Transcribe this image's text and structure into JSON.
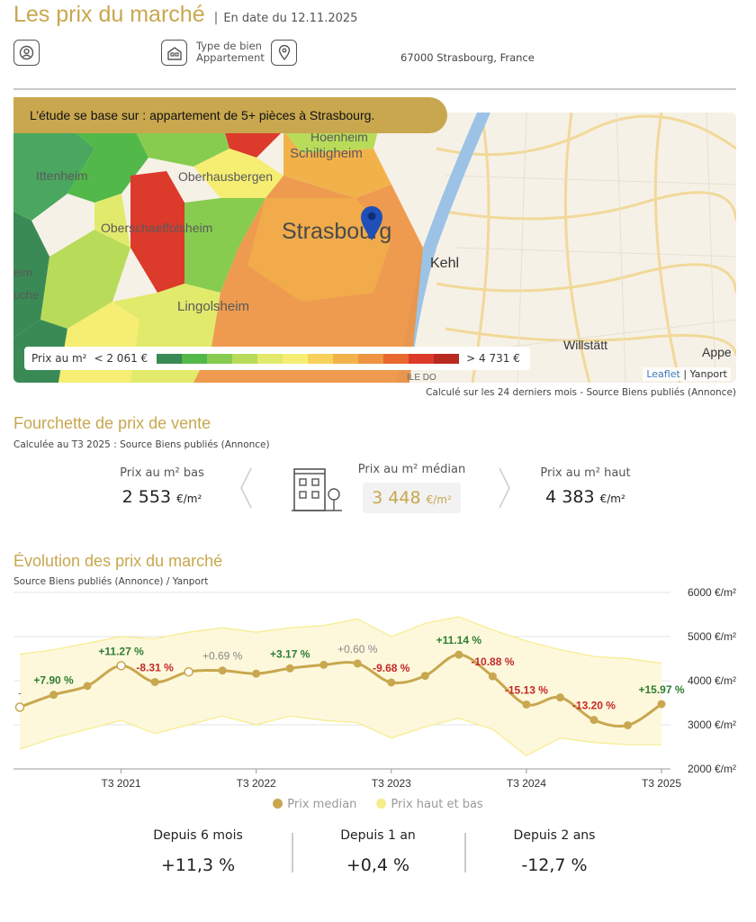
{
  "header": {
    "title": "Les prix du marché",
    "separator": "|",
    "date": "En date du 12.11.2025"
  },
  "property": {
    "type_label": "Type de bien",
    "type_value": "Appartement",
    "address": "67000 Strasbourg, France",
    "icons": [
      "user-icon",
      "building-icon",
      "location-pin-icon"
    ]
  },
  "map": {
    "banner": "L’étude se base sur :  appartement de 5+ pièces à Strasbourg.",
    "labels": {
      "hoenheim": "Hoenheim",
      "ittenheim": "Ittenheim",
      "oberhausbergen": "Oberhausbergen",
      "schiltigheim": "Schiltigheim",
      "oberschaeffolsheim": "Oberschaeffolsheim",
      "strasbourg": "Strasbourg",
      "kehl": "Kehl",
      "lingolsheim": "Lingolsheim",
      "willstatt": "Willstätt",
      "appe": "Appe",
      "eim": "eim",
      "uche": "uche",
      "ile": "ILE DO"
    },
    "legend": {
      "label": "Prix au m²",
      "min": "< 2 061 €",
      "max": "> 4 731 €",
      "colors": [
        "#3a8a55",
        "#52b84a",
        "#87cc4f",
        "#b8db5a",
        "#e2ea6c",
        "#f5ee73",
        "#f6d25a",
        "#f2b24a",
        "#ee9442",
        "#e8682f",
        "#dc3a2b",
        "#b82a20"
      ]
    },
    "attribution_link": "Leaflet",
    "attribution_sep": "|",
    "attribution_text": "Yanport",
    "source": "Calculé sur les 24 derniers mois - Source Biens publiés (Annonce)"
  },
  "range": {
    "title": "Fourchette de prix de vente",
    "subtitle": "Calculée au T3 2025 : Source Biens publiés (Annonce)",
    "low_label": "Prix au m² bas",
    "low_value": "2 553",
    "median_label": "Prix au m² médian",
    "median_value": "3 448",
    "high_label": "Prix au m² haut",
    "high_value": "4 383",
    "unit": "€/m²"
  },
  "evolution": {
    "title": "Évolution des prix du marché",
    "subtitle": "Source Biens publiés (Annonce) / Yanport",
    "legend_median": "Prix median",
    "legend_range": "Prix haut et bas",
    "summary": [
      {
        "label": "Depuis 6 mois",
        "value": "+11,3 %"
      },
      {
        "label": "Depuis 1 an",
        "value": "+0,4 %"
      },
      {
        "label": "Depuis 2 ans",
        "value": "-12,7 %"
      }
    ]
  },
  "chart_data": {
    "type": "line",
    "ylim": [
      2000,
      6000
    ],
    "y_ticks": [
      "2000 €/m²",
      "3000 €/m²",
      "4000 €/m²",
      "5000 €/m²",
      "6000 €/m²"
    ],
    "x_ticks": [
      "T3 2021",
      "T3 2022",
      "T3 2023",
      "T3 2024",
      "T3 2025"
    ],
    "x_tick_index": [
      3,
      7,
      11,
      15,
      19
    ],
    "series": [
      {
        "name": "Prix median",
        "color": "#c8a74e",
        "values": [
          3400,
          3680,
          3880,
          4340,
          3970,
          4200,
          4230,
          4160,
          4280,
          4360,
          4390,
          3960,
          4110,
          4590,
          4100,
          3460,
          3620,
          3110,
          2990,
          3470
        ]
      },
      {
        "name": "Prix haut et bas",
        "color": "#f6ec8a",
        "high": [
          4600,
          4700,
          4850,
          5000,
          4950,
          5100,
          5200,
          5100,
          5200,
          5250,
          5400,
          5000,
          5300,
          5450,
          5150,
          4900,
          4700,
          4550,
          4500,
          4400
        ],
        "low": [
          2450,
          2700,
          2900,
          3100,
          2800,
          3000,
          3200,
          3000,
          3200,
          3100,
          3050,
          2700,
          2950,
          3150,
          2900,
          2300,
          2700,
          2600,
          2550,
          2550
        ]
      }
    ],
    "open_points": [
      0,
      3,
      5
    ],
    "annotations": [
      {
        "i": 0,
        "text": "-",
        "color": "#777777",
        "pos": "above"
      },
      {
        "i": 1,
        "text": "+7.90 %",
        "color": "#2e7d32",
        "pos": "above"
      },
      {
        "i": 3,
        "text": "+11.27 %",
        "color": "#2e7d32",
        "pos": "above"
      },
      {
        "i": 4,
        "text": "-8.31 %",
        "color": "#c62828",
        "pos": "above"
      },
      {
        "i": 6,
        "text": "+0.69 %",
        "color": "#888888",
        "pos": "above"
      },
      {
        "i": 8,
        "text": "+3.17 %",
        "color": "#2e7d32",
        "pos": "above"
      },
      {
        "i": 10,
        "text": "+0.60 %",
        "color": "#888888",
        "pos": "above"
      },
      {
        "i": 11,
        "text": "-9.68 %",
        "color": "#c62828",
        "pos": "above"
      },
      {
        "i": 13,
        "text": "+11.14 %",
        "color": "#2e7d32",
        "pos": "above"
      },
      {
        "i": 14,
        "text": "-10.88 %",
        "color": "#c62828",
        "pos": "above"
      },
      {
        "i": 15,
        "text": "-15.13 %",
        "color": "#c62828",
        "pos": "above"
      },
      {
        "i": 17,
        "text": "-13.20 %",
        "color": "#c62828",
        "pos": "above"
      },
      {
        "i": 19,
        "text": "+15.97 %",
        "color": "#2e7d32",
        "pos": "above"
      }
    ]
  }
}
